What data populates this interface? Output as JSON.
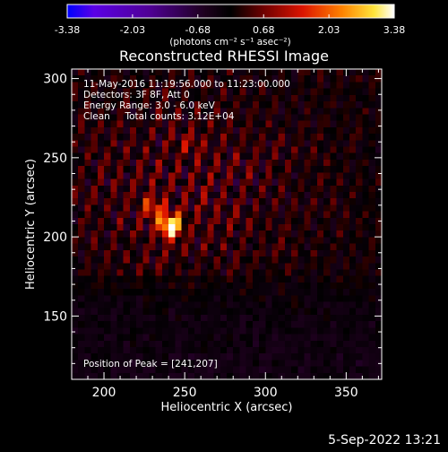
{
  "chart_data": {
    "type": "heatmap",
    "title": "Reconstructed RHESSI Image",
    "xlabel": "Heliocentric X (arcsec)",
    "ylabel": "Heliocentric Y (arcsec)",
    "xlim": [
      180,
      372
    ],
    "ylim": [
      110,
      306
    ],
    "x_ticks": [
      200,
      250,
      300,
      350
    ],
    "y_ticks": [
      150,
      200,
      250,
      300
    ],
    "x_tick_labels": [
      "200",
      "250",
      "300",
      "350"
    ],
    "y_tick_labels": [
      "150",
      "200",
      "250",
      "300"
    ],
    "colorbar": {
      "min": -3.38,
      "max": 3.38,
      "ticks": [
        -3.38,
        -2.03,
        -0.68,
        0.68,
        2.03,
        3.38
      ],
      "tick_labels": [
        "-3.38",
        "-2.03",
        "-0.68",
        "0.68",
        "2.03",
        "3.38"
      ],
      "units_label": "(photons cm⁻² s⁻¹ asec⁻²)",
      "colormap": "purple-red-yellow-white"
    },
    "peak": {
      "x": 241,
      "y": 207
    },
    "annotations": [
      "11-May-2016 11:19:56.000 to 11:23:00.000",
      "Detectors: 3F 8F, Att 0",
      "Energy Range: 3.0 - 6.0 keV",
      "Clean     Total counts: 3.12E+04",
      "Position of Peak = [241,207]"
    ],
    "grid": false
  },
  "footer": {
    "date": "5-Sep-2022 13:21"
  }
}
